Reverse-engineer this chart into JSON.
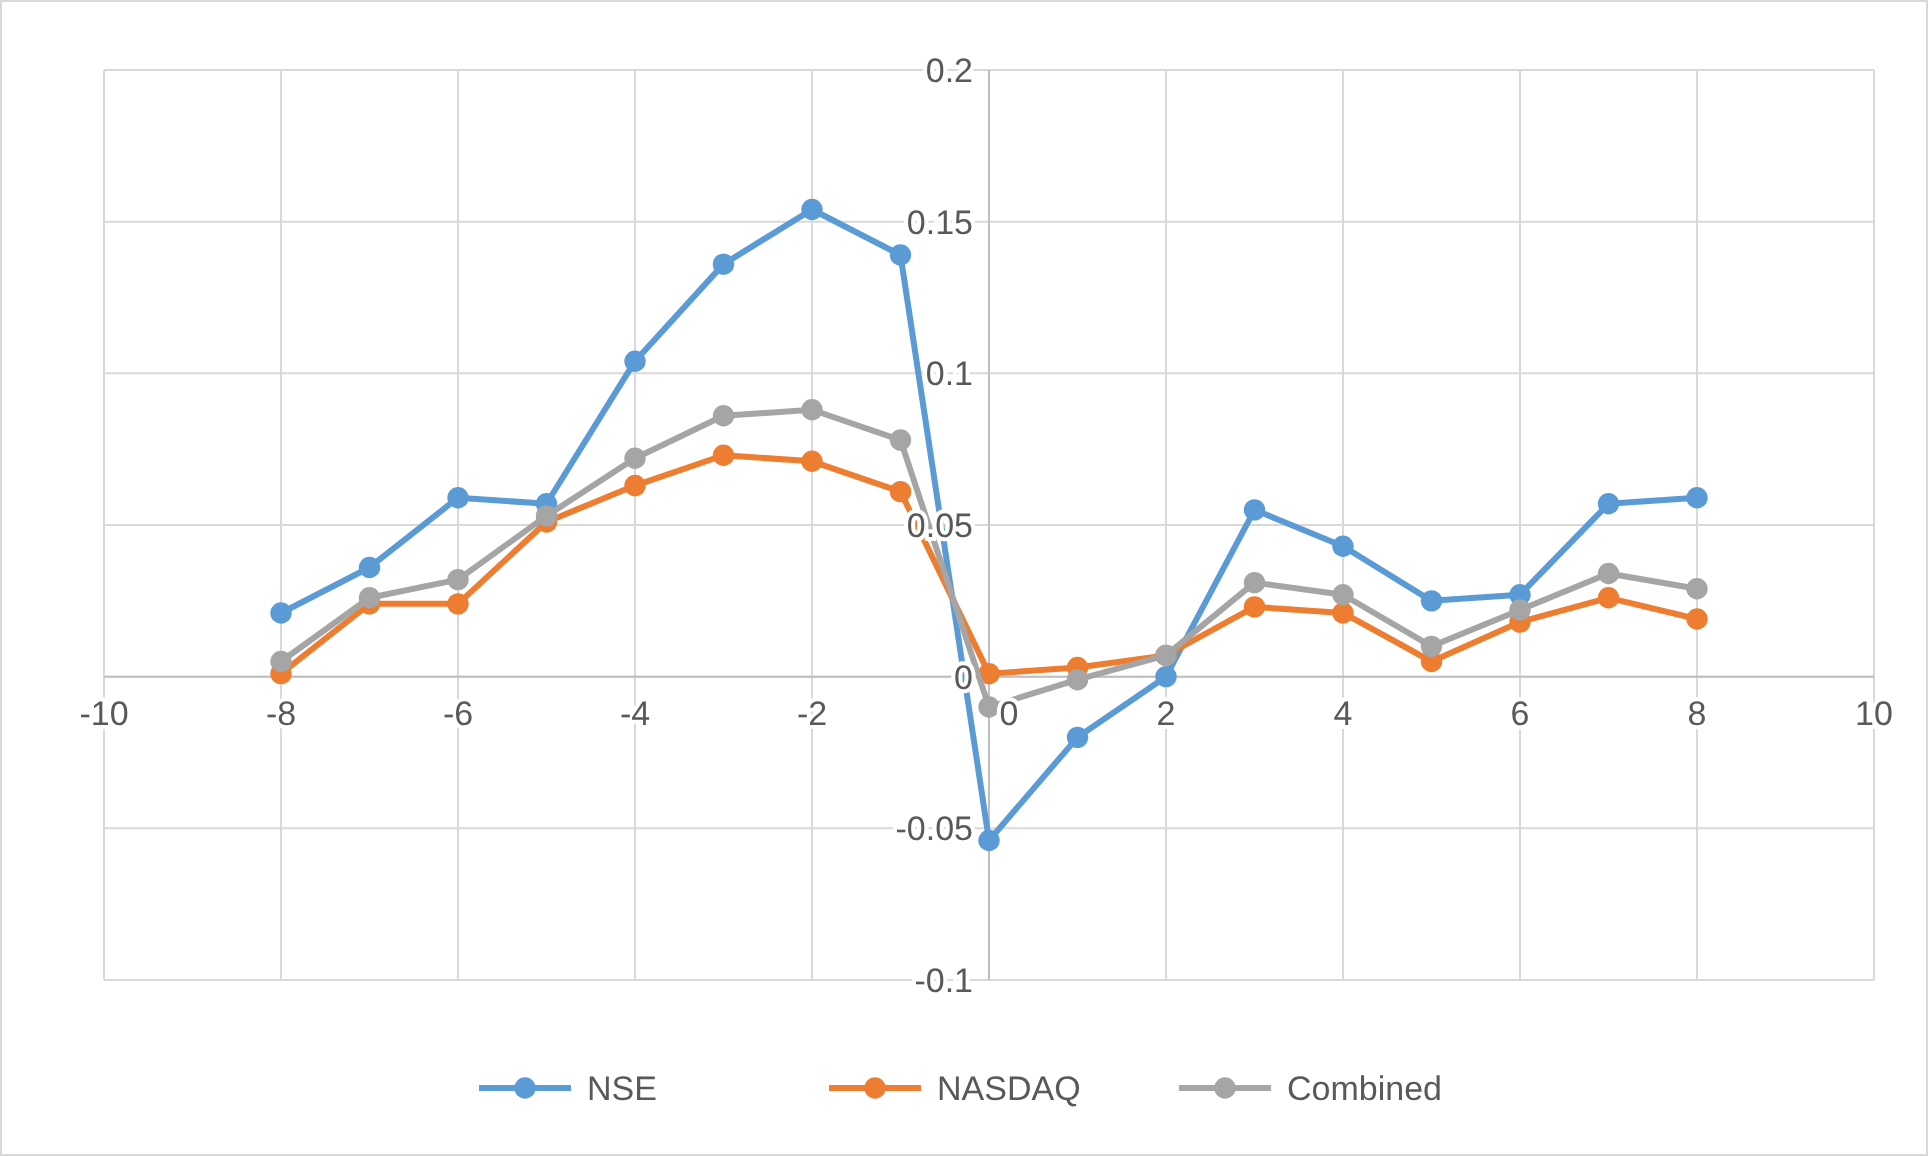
{
  "chart_data": {
    "type": "line",
    "x": [
      -8,
      -7,
      -6,
      -5,
      -4,
      -3,
      -2,
      -1,
      0,
      1,
      2,
      3,
      4,
      5,
      6,
      7,
      8
    ],
    "series": [
      {
        "name": "NSE",
        "color": "#5b9bd5",
        "values": [
          0.021,
          0.036,
          0.059,
          0.057,
          0.104,
          0.136,
          0.154,
          0.139,
          -0.054,
          -0.02,
          0,
          0.055,
          0.043,
          0.025,
          0.027,
          0.057,
          0.059
        ]
      },
      {
        "name": "NASDAQ",
        "color": "#ed7d31",
        "values": [
          0.001,
          0.024,
          0.024,
          0.051,
          0.063,
          0.073,
          0.071,
          0.061,
          0.001,
          0.003,
          0.007,
          0.023,
          0.021,
          0.005,
          0.018,
          0.026,
          0.019
        ]
      },
      {
        "name": "Combined",
        "color": "#a5a5a5",
        "values": [
          0.005,
          0.026,
          0.032,
          0.053,
          0.072,
          0.086,
          0.088,
          0.078,
          -0.01,
          -0.001,
          0.007,
          0.031,
          0.027,
          0.01,
          0.022,
          0.034,
          0.029
        ]
      }
    ],
    "xlim": [
      -10,
      10
    ],
    "xticks": [
      -10,
      -8,
      -6,
      -4,
      -2,
      0,
      2,
      4,
      6,
      8,
      10
    ],
    "ylim": [
      -0.1,
      0.2
    ],
    "yticks": [
      -0.1,
      -0.05,
      0,
      0.05,
      0.1,
      0.15,
      0.2
    ],
    "grid": true,
    "legend": "bottom",
    "marker": "circle",
    "line_style": "solid"
  }
}
